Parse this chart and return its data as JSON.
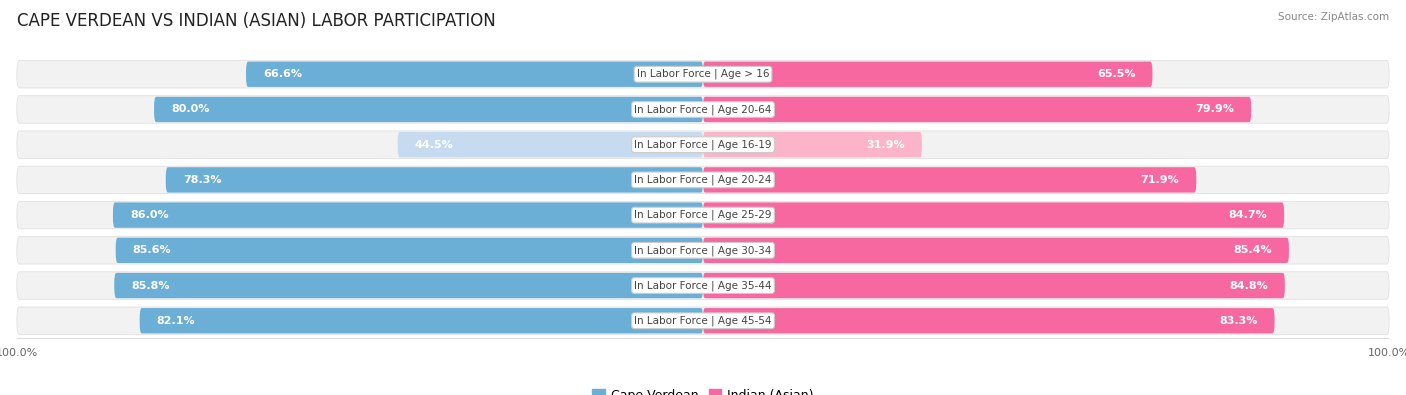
{
  "title": "CAPE VERDEAN VS INDIAN (ASIAN) LABOR PARTICIPATION",
  "source": "Source: ZipAtlas.com",
  "categories": [
    "In Labor Force | Age > 16",
    "In Labor Force | Age 20-64",
    "In Labor Force | Age 16-19",
    "In Labor Force | Age 20-24",
    "In Labor Force | Age 25-29",
    "In Labor Force | Age 30-34",
    "In Labor Force | Age 35-44",
    "In Labor Force | Age 45-54"
  ],
  "cape_verdean": [
    66.6,
    80.0,
    44.5,
    78.3,
    86.0,
    85.6,
    85.8,
    82.1
  ],
  "indian": [
    65.5,
    79.9,
    31.9,
    71.9,
    84.7,
    85.4,
    84.8,
    83.3
  ],
  "cape_verdean_color": "#6baed6",
  "cape_verdean_light_color": "#c6dbef",
  "indian_color": "#f768a1",
  "indian_light_color": "#fbb4c9",
  "row_bg_color": "#f0f0f0",
  "row_bg_alt_color": "#e8e8e8",
  "label_color_white": "#ffffff",
  "label_color_dark": "#555555",
  "max_value": 100.0,
  "bar_height": 0.72,
  "title_fontsize": 12,
  "label_fontsize": 8.0,
  "category_fontsize": 7.5,
  "legend_fontsize": 9,
  "footer_fontsize": 8
}
